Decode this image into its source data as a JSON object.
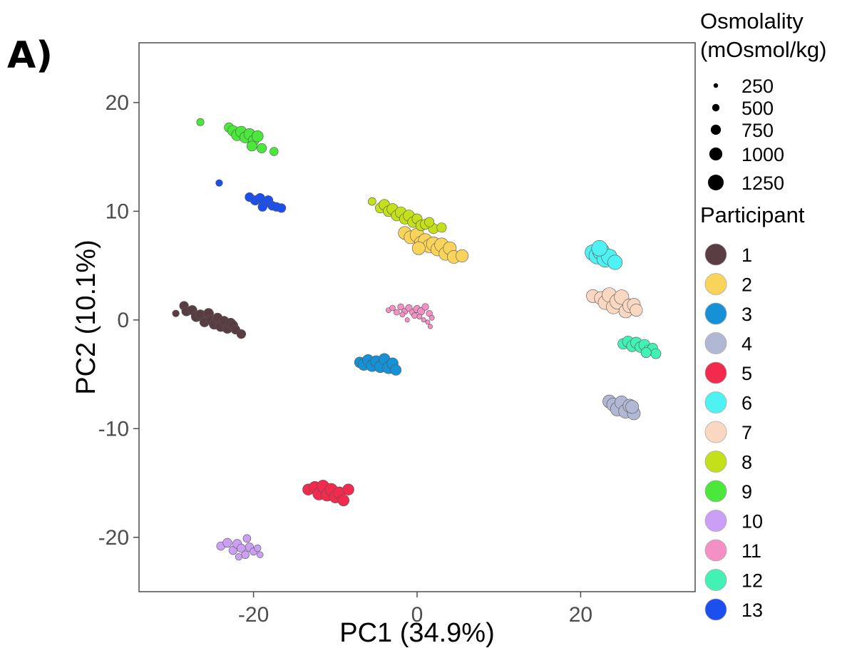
{
  "panel_label": "A)",
  "chart_data": {
    "type": "scatter",
    "xlabel": "PC1 (34.9%)",
    "ylabel": "PC2 (10.1%)",
    "xlim": [
      -34,
      34
    ],
    "ylim": [
      -25,
      25.5
    ],
    "x_ticks": [
      {
        "value": -20,
        "label": "-20"
      },
      {
        "value": 0,
        "label": "0"
      },
      {
        "value": 20,
        "label": "20"
      }
    ],
    "y_ticks": [
      {
        "value": 20,
        "label": "20"
      },
      {
        "value": 10,
        "label": "10"
      },
      {
        "value": 0,
        "label": "0"
      },
      {
        "value": -10,
        "label": "-10"
      },
      {
        "value": -20,
        "label": "-20"
      }
    ],
    "grid": false,
    "size_legend": {
      "title_line1": "Osmolality",
      "title_line2": "(mOsmol/kg)",
      "entries": [
        {
          "value": 250,
          "label": "250"
        },
        {
          "value": 500,
          "label": "500"
        },
        {
          "value": 750,
          "label": "750"
        },
        {
          "value": 1000,
          "label": "1000"
        },
        {
          "value": 1250,
          "label": "1250"
        }
      ]
    },
    "color_legend": {
      "title": "Participant",
      "entries": [
        {
          "label": "1",
          "color": "#5a3d42"
        },
        {
          "label": "2",
          "color": "#fad45a"
        },
        {
          "label": "3",
          "color": "#1791d5"
        },
        {
          "label": "4",
          "color": "#b0b8d4"
        },
        {
          "label": "5",
          "color": "#f22a4d"
        },
        {
          "label": "6",
          "color": "#4ef2f2"
        },
        {
          "label": "7",
          "color": "#fad7c0"
        },
        {
          "label": "8",
          "color": "#c3e01a"
        },
        {
          "label": "9",
          "color": "#4be83b"
        },
        {
          "label": "10",
          "color": "#cb9ff5"
        },
        {
          "label": "11",
          "color": "#f590c6"
        },
        {
          "label": "12",
          "color": "#42f2b4"
        },
        {
          "label": "13",
          "color": "#1b4ff0"
        }
      ]
    },
    "series": [
      {
        "participant": "1",
        "color": "#5a3d42",
        "points": [
          [
            -29.5,
            0.6,
            450
          ],
          [
            -28.5,
            1.3,
            650
          ],
          [
            -28.2,
            0.8,
            700
          ],
          [
            -27.5,
            0.9,
            700
          ],
          [
            -27,
            0.3,
            750
          ],
          [
            -26.5,
            0.5,
            700
          ],
          [
            -26,
            -0.2,
            700
          ],
          [
            -25.5,
            0.6,
            750
          ],
          [
            -25.2,
            0,
            700
          ],
          [
            -24.8,
            -0.4,
            750
          ],
          [
            -24.4,
            0.2,
            700
          ],
          [
            -24,
            -0.6,
            750
          ],
          [
            -23.6,
            -0.1,
            700
          ],
          [
            -23.2,
            -0.8,
            700
          ],
          [
            -22.8,
            -0.3,
            750
          ],
          [
            -22.5,
            -0.5,
            700
          ],
          [
            -22.2,
            -0.9,
            650
          ],
          [
            -21.5,
            -1.3,
            650
          ]
        ]
      },
      {
        "participant": "2",
        "color": "#fad45a",
        "points": [
          [
            -1.5,
            8,
            1000
          ],
          [
            -0.8,
            7.6,
            1000
          ],
          [
            0,
            7.8,
            1100
          ],
          [
            0.5,
            7.1,
            1050
          ],
          [
            1,
            7.3,
            1100
          ],
          [
            1.5,
            6.8,
            1050
          ],
          [
            2,
            7,
            1100
          ],
          [
            2.5,
            6.5,
            1050
          ],
          [
            3,
            6.9,
            1100
          ],
          [
            3.5,
            6.1,
            1050
          ],
          [
            4,
            6.6,
            1000
          ],
          [
            4.5,
            5.8,
            1000
          ],
          [
            5.5,
            5.9,
            950
          ],
          [
            0.2,
            6.6,
            1000
          ]
        ]
      },
      {
        "participant": "3",
        "color": "#1791d5",
        "points": [
          [
            -7,
            -3.9,
            800
          ],
          [
            -6.5,
            -4.1,
            900
          ],
          [
            -6,
            -3.7,
            850
          ],
          [
            -5.5,
            -4.2,
            900
          ],
          [
            -5,
            -3.8,
            850
          ],
          [
            -4.5,
            -4.3,
            900
          ],
          [
            -4,
            -3.6,
            850
          ],
          [
            -3.5,
            -4.4,
            900
          ],
          [
            -3,
            -4.0,
            850
          ],
          [
            -2.6,
            -4.6,
            800
          ]
        ]
      },
      {
        "participant": "4",
        "color": "#b0b8d4",
        "points": [
          [
            23.5,
            -7.5,
            1000
          ],
          [
            24,
            -7.8,
            1050
          ],
          [
            24.5,
            -8.2,
            1100
          ],
          [
            25,
            -7.6,
            1050
          ],
          [
            25.5,
            -8.4,
            1100
          ],
          [
            26,
            -7.9,
            1050
          ],
          [
            26.5,
            -8.6,
            1000
          ],
          [
            26.3,
            -8.0,
            1000
          ]
        ]
      },
      {
        "participant": "5",
        "color": "#f22a4d",
        "points": [
          [
            -13.3,
            -15.6,
            850
          ],
          [
            -12.5,
            -15.4,
            900
          ],
          [
            -12,
            -16.0,
            950
          ],
          [
            -11.5,
            -15.3,
            950
          ],
          [
            -11,
            -16.1,
            950
          ],
          [
            -10.5,
            -15.6,
            950
          ],
          [
            -10,
            -16.3,
            900
          ],
          [
            -9.5,
            -15.9,
            900
          ],
          [
            -9,
            -16.6,
            850
          ],
          [
            -8.4,
            -15.6,
            850
          ]
        ]
      },
      {
        "participant": "6",
        "color": "#4ef2f2",
        "points": [
          [
            21.5,
            6.2,
            1250
          ],
          [
            22,
            5.9,
            1300
          ],
          [
            22.5,
            6.3,
            1350
          ],
          [
            23,
            5.6,
            1300
          ],
          [
            23.5,
            5.8,
            1250
          ],
          [
            24.2,
            5.3,
            1150
          ],
          [
            22.3,
            6.6,
            1250
          ]
        ]
      },
      {
        "participant": "7",
        "color": "#fad7c0",
        "points": [
          [
            21.5,
            2.2,
            1000
          ],
          [
            22.5,
            2,
            1050
          ],
          [
            23,
            1.6,
            1100
          ],
          [
            23.5,
            2.3,
            1150
          ],
          [
            24,
            1.2,
            1100
          ],
          [
            24.5,
            1.7,
            1200
          ],
          [
            25,
            2.1,
            1150
          ],
          [
            25.5,
            0.8,
            1050
          ],
          [
            26,
            1.3,
            1100
          ],
          [
            26.5,
            1.4,
            1000
          ],
          [
            26.8,
            0.9,
            950
          ]
        ]
      },
      {
        "participant": "8",
        "color": "#c3e01a",
        "points": [
          [
            -5.5,
            10.9,
            550
          ],
          [
            -4.5,
            10.3,
            750
          ],
          [
            -4,
            10.6,
            800
          ],
          [
            -3.5,
            10,
            800
          ],
          [
            -3,
            10.2,
            850
          ],
          [
            -2.5,
            9.6,
            800
          ],
          [
            -2,
            9.9,
            850
          ],
          [
            -1.5,
            9.3,
            800
          ],
          [
            -1,
            9.6,
            850
          ],
          [
            -0.5,
            9,
            800
          ],
          [
            0,
            9.3,
            750
          ],
          [
            0.5,
            8.7,
            800
          ],
          [
            1,
            8.8,
            750
          ],
          [
            2,
            8.4,
            750
          ],
          [
            3,
            8.5,
            700
          ],
          [
            1.5,
            9.0,
            700
          ]
        ]
      },
      {
        "participant": "9",
        "color": "#4be83b",
        "points": [
          [
            -26.5,
            18.2,
            500
          ],
          [
            -23,
            17.7,
            700
          ],
          [
            -22.5,
            17.4,
            800
          ],
          [
            -22,
            17.0,
            850
          ],
          [
            -21.5,
            17.3,
            850
          ],
          [
            -21,
            16.8,
            850
          ],
          [
            -20.5,
            17.1,
            850
          ],
          [
            -20,
            16.5,
            800
          ],
          [
            -19.5,
            16.9,
            850
          ],
          [
            -19,
            15.8,
            700
          ],
          [
            -20.2,
            16.0,
            750
          ],
          [
            -17.5,
            15.5,
            600
          ]
        ]
      },
      {
        "participant": "10",
        "color": "#cb9ff5",
        "points": [
          [
            -24,
            -20.8,
            600
          ],
          [
            -23.2,
            -20.5,
            650
          ],
          [
            -22.5,
            -21.2,
            600
          ],
          [
            -22,
            -20.6,
            650
          ],
          [
            -21.5,
            -21.0,
            600
          ],
          [
            -21,
            -21.6,
            550
          ],
          [
            -20.8,
            -20.1,
            550
          ],
          [
            -20.5,
            -20.9,
            600
          ],
          [
            -20,
            -21.3,
            500
          ],
          [
            -19.5,
            -21.0,
            450
          ],
          [
            -21.8,
            -21.8,
            450
          ],
          [
            -19.2,
            -21.6,
            400
          ]
        ]
      },
      {
        "participant": "11",
        "color": "#f590c6",
        "points": [
          [
            -3.5,
            0.9,
            300
          ],
          [
            -3,
            1.1,
            350
          ],
          [
            -2.5,
            0.7,
            350
          ],
          [
            -2,
            1.2,
            400
          ],
          [
            -1.5,
            0.8,
            400
          ],
          [
            -1,
            1.1,
            450
          ],
          [
            -0.5,
            0.7,
            450
          ],
          [
            0,
            1.0,
            500
          ],
          [
            0.5,
            0.8,
            500
          ],
          [
            1,
            1.2,
            450
          ],
          [
            1.5,
            0.6,
            400
          ],
          [
            1.8,
            0.2,
            300
          ],
          [
            1.3,
            -0.2,
            250
          ],
          [
            0.8,
            0.0,
            250
          ],
          [
            1.6,
            -0.6,
            250
          ],
          [
            -1.2,
            0.0,
            250
          ],
          [
            -0.3,
            0.4,
            350
          ],
          [
            0.3,
            0.3,
            300
          ],
          [
            -1.8,
            0.5,
            300
          ]
        ]
      },
      {
        "participant": "12",
        "color": "#42f2b4",
        "points": [
          [
            25.2,
            -2.2,
            800
          ],
          [
            25.8,
            -2.0,
            850
          ],
          [
            26.3,
            -2.4,
            850
          ],
          [
            26.8,
            -2.1,
            850
          ],
          [
            27.3,
            -2.5,
            800
          ],
          [
            27.8,
            -2.3,
            850
          ],
          [
            28.3,
            -2.8,
            800
          ],
          [
            28.8,
            -2.6,
            750
          ],
          [
            29.2,
            -3.1,
            750
          ],
          [
            28.0,
            -3.0,
            750
          ]
        ]
      },
      {
        "participant": "13",
        "color": "#1b4ff0",
        "points": [
          [
            -24.2,
            12.6,
            450
          ],
          [
            -20.5,
            11.3,
            650
          ],
          [
            -19.8,
            11,
            700
          ],
          [
            -19.2,
            11.2,
            700
          ],
          [
            -18.7,
            10.7,
            700
          ],
          [
            -18.2,
            11,
            700
          ],
          [
            -17.7,
            10.5,
            650
          ],
          [
            -17.2,
            10.4,
            650
          ],
          [
            -16.6,
            10.3,
            650
          ],
          [
            -18.9,
            10.4,
            650
          ]
        ]
      }
    ]
  }
}
